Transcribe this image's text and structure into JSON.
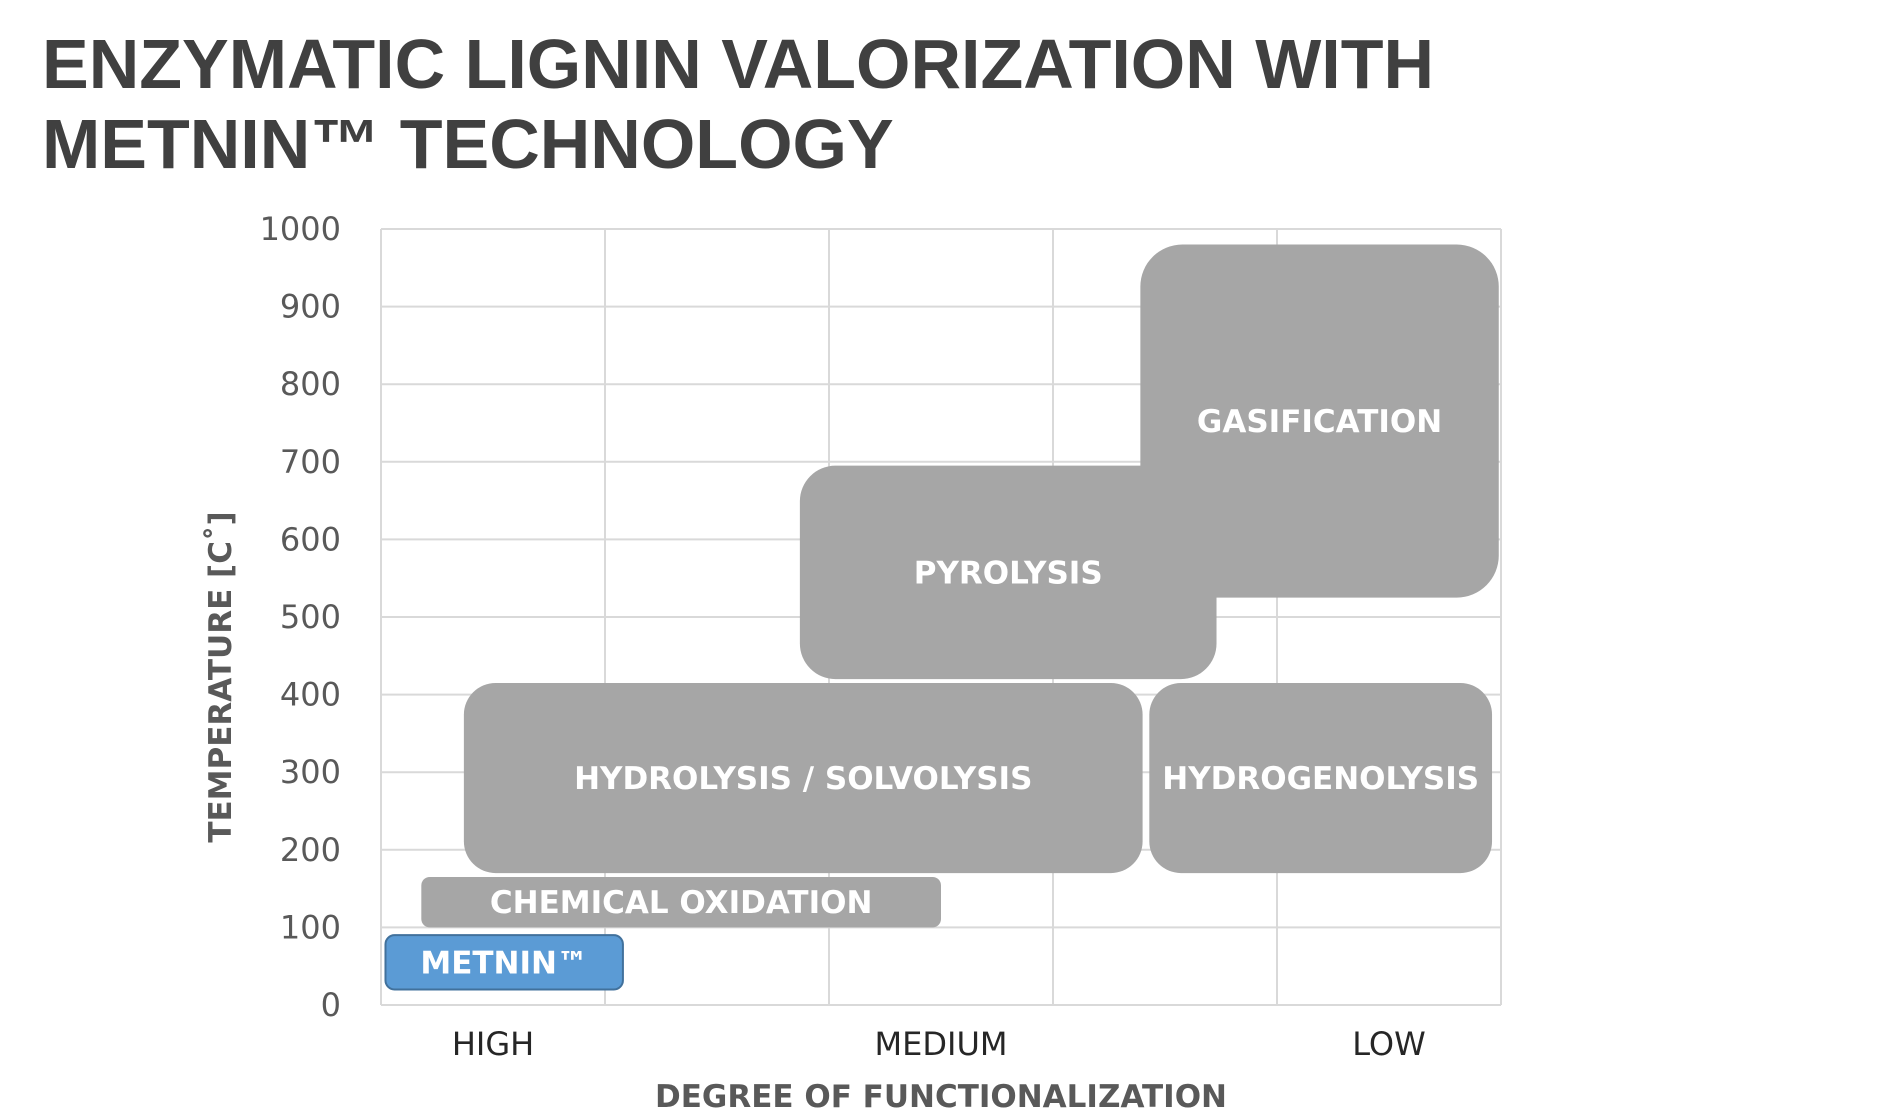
{
  "title_lines": [
    "ENZYMATIC LIGNIN VALORIZATION WITH",
    "METNIN™ TECHNOLOGY"
  ],
  "chart_data": {
    "type": "range-region",
    "title": "ENZYMATIC LIGNIN VALORIZATION WITH METNIN™ TECHNOLOGY",
    "xlabel": "DEGREE OF FUNCTIONALIZATION",
    "ylabel": "TEMPERATURE [C˚]",
    "ylim": [
      0,
      1000
    ],
    "yticks": [
      "0",
      "100",
      "200",
      "300",
      "400",
      "500",
      "600",
      "700",
      "800",
      "900",
      "1000"
    ],
    "xlim": [
      0,
      5
    ],
    "categories": [
      {
        "label": "HIGH",
        "x": 0.5
      },
      {
        "label": "MEDIUM",
        "x": 2.5
      },
      {
        "label": "LOW",
        "x": 4.5
      }
    ],
    "grid": true,
    "regions": [
      {
        "name": "METNIN™",
        "x": [
          0.02,
          1.08
        ],
        "y": [
          20,
          90
        ],
        "color": "#5b9bd5",
        "border": "#41719c"
      },
      {
        "name": "CHEMICAL OXIDATION",
        "x": [
          0.18,
          2.5
        ],
        "y": [
          100,
          165
        ],
        "color": "#a6a6a6"
      },
      {
        "name": "HYDROLYSIS / SOLVOLYSIS",
        "x": [
          0.37,
          3.4
        ],
        "y": [
          170,
          415
        ],
        "color": "#a6a6a6"
      },
      {
        "name": "HYDROGENOLYSIS",
        "x": [
          3.43,
          4.96
        ],
        "y": [
          170,
          415
        ],
        "color": "#a6a6a6"
      },
      {
        "name": "PYROLYSIS",
        "x": [
          1.87,
          3.73
        ],
        "y": [
          420,
          695
        ],
        "color": "#a6a6a6"
      },
      {
        "name": "GASIFICATION",
        "x": [
          3.39,
          4.99
        ],
        "y": [
          525,
          980
        ],
        "color": "#a6a6a6"
      }
    ]
  }
}
